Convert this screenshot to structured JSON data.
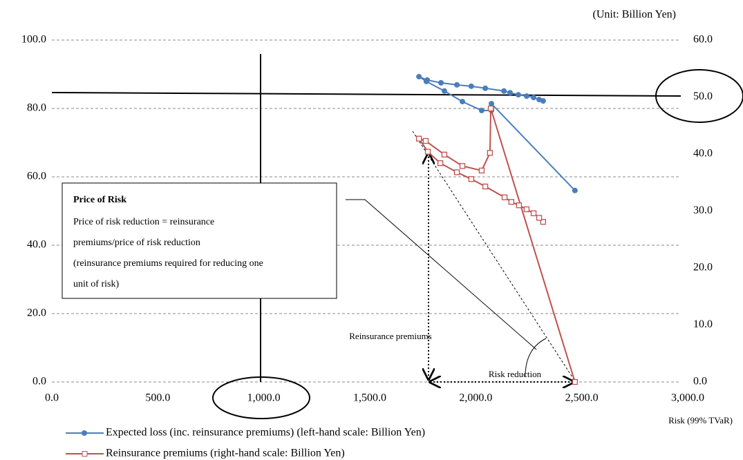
{
  "chart_data": {
    "type": "line",
    "unit_note": "(Unit: Billion Yen)",
    "x_label": "Risk (99% TVaR)",
    "xlim": [
      0,
      3000
    ],
    "xticks": [
      {
        "value": 0,
        "label": "0.0"
      },
      {
        "value": 500,
        "label": "500.0"
      },
      {
        "value": 1000,
        "label": "1,000.0"
      },
      {
        "value": 1500,
        "label": "1,500.0"
      },
      {
        "value": 2000,
        "label": "2,000.0"
      },
      {
        "value": 2500,
        "label": "2,500.0"
      },
      {
        "value": 3000,
        "label": "3,000.0"
      }
    ],
    "ylim": [
      0,
      100
    ],
    "yticks": [
      {
        "value": 0,
        "label": "0.0"
      },
      {
        "value": 20,
        "label": "20.0"
      },
      {
        "value": 40,
        "label": "40.0"
      },
      {
        "value": 60,
        "label": "60.0"
      },
      {
        "value": 80,
        "label": "80.0"
      },
      {
        "value": 100,
        "label": "100.0"
      }
    ],
    "y2lim": [
      0,
      60
    ],
    "y2ticks": [
      {
        "value": 0,
        "label": "0.0"
      },
      {
        "value": 10,
        "label": "10.0"
      },
      {
        "value": 20,
        "label": "20.0"
      },
      {
        "value": 30,
        "label": "30.0"
      },
      {
        "value": 40,
        "label": "40.0"
      },
      {
        "value": 50,
        "label": "50.0"
      },
      {
        "value": 60,
        "label": "60.0"
      }
    ],
    "grid": true,
    "series": [
      {
        "name": "Expected loss (inc. reinsurance premiums)  (left-hand scale: Billion Yen)",
        "color": "#4a7ebb",
        "marker": "circle",
        "x": [
          2318,
          2299,
          2273,
          2240,
          2201,
          2162,
          2133,
          2045,
          1979,
          1911,
          1836,
          1771,
          1732,
          1767,
          1852,
          1937,
          2028,
          2074,
          2074,
          2468
        ],
        "values": [
          82.2,
          82.6,
          83.2,
          83.6,
          84.0,
          84.6,
          85.1,
          85.9,
          86.5,
          86.9,
          87.5,
          88.3,
          89.3,
          87.9,
          85.1,
          82.0,
          79.4,
          79.4,
          81.4,
          56.0
        ]
      },
      {
        "name": "Reinsurance premiums (right-hand scale: Billion Yen)",
        "color": "#c0504d",
        "marker": "square",
        "axis": "y2",
        "x": [
          2318,
          2299,
          2273,
          2240,
          2204,
          2168,
          2136,
          2045,
          1979,
          1911,
          1833,
          1774,
          1732,
          1764,
          1852,
          1937,
          2028,
          2067,
          2071,
          2468
        ],
        "values": [
          28.1,
          28.8,
          29.6,
          30.3,
          31.0,
          31.6,
          32.4,
          34.3,
          35.6,
          36.8,
          38.4,
          40.4,
          42.7,
          42.3,
          39.9,
          37.9,
          37.1,
          40.2,
          48.0,
          0
        ]
      }
    ],
    "annotations": {
      "box_title": "Price of Risk",
      "box_lines": [
        "Price of risk reduction = reinsurance",
        "premiums/price of risk reduction",
        "(reinsurance premiums required for reducing one",
        "unit of risk)"
      ],
      "vertical_arrow": "Reinsurance premiums",
      "horizontal_arrow": "Risk reduction"
    }
  }
}
